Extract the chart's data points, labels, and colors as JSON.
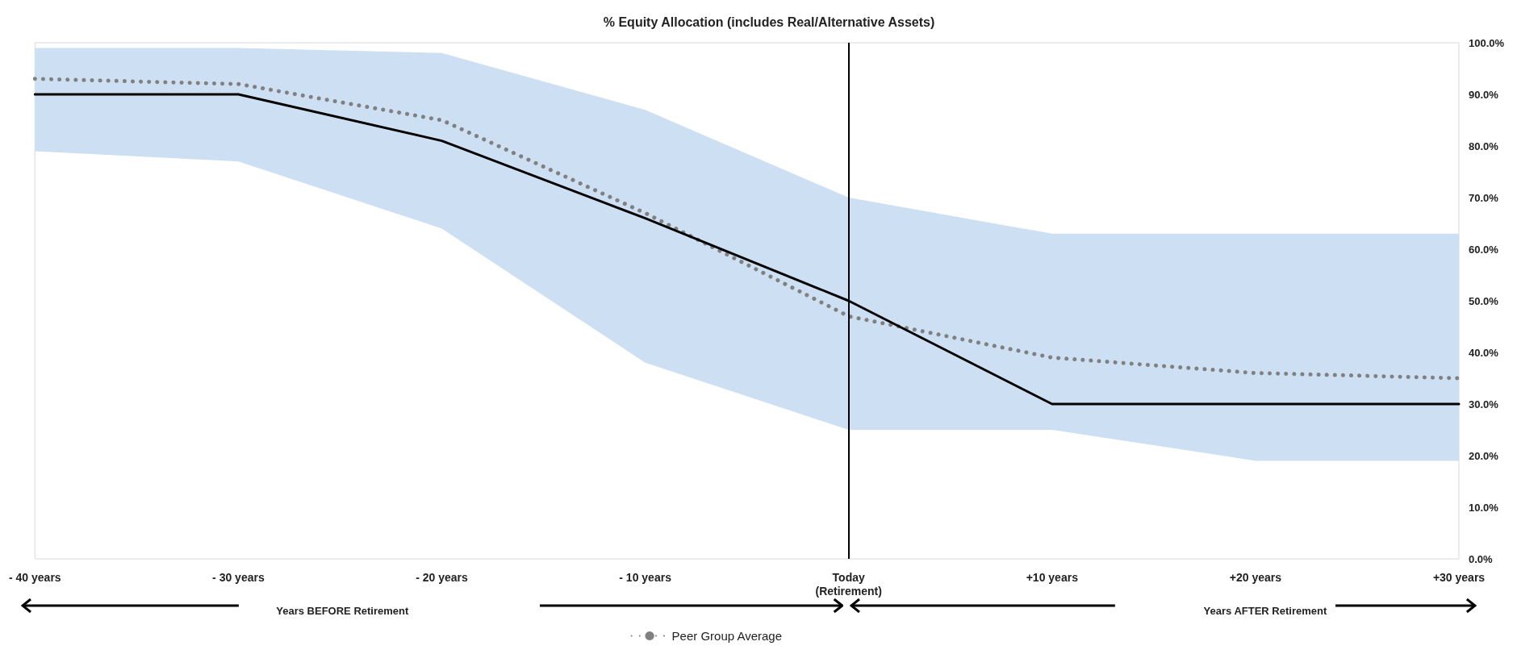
{
  "chart_data": {
    "type": "line",
    "title": "% Equity Allocation (includes Real/Alternative Assets)",
    "categories": [
      "- 40 years",
      "- 30 years",
      "- 20 years",
      "- 10 years",
      "Today\n(Retirement)",
      "+10 years",
      "+20 years",
      "+30 years"
    ],
    "series": [
      {
        "name": "Peer Group Average",
        "color": "#808080",
        "line_style": "dotted",
        "values": [
          93,
          92,
          85,
          67,
          47,
          39,
          36,
          35
        ],
        "lower": [
          79,
          77,
          64,
          38,
          25,
          25,
          19,
          19
        ],
        "upper": [
          99,
          99,
          98,
          87,
          70,
          63,
          63,
          63
        ]
      },
      {
        "color": "#000000",
        "line_style": "solid",
        "values": [
          90,
          90,
          81,
          66,
          50,
          30,
          30,
          30
        ]
      }
    ],
    "ylim": [
      0,
      100
    ],
    "yticks": [
      {
        "value": 0,
        "label": "0.0%"
      },
      {
        "value": 10,
        "label": "10.0%"
      },
      {
        "value": 20,
        "label": "20.0%"
      },
      {
        "value": 30,
        "label": "30.0%"
      },
      {
        "value": 40,
        "label": "40.0%"
      },
      {
        "value": 50,
        "label": "50.0%"
      },
      {
        "value": 60,
        "label": "60.0%"
      },
      {
        "value": 70,
        "label": "70.0%"
      },
      {
        "value": 80,
        "label": "80.0%"
      },
      {
        "value": 90,
        "label": "90.0%"
      },
      {
        "value": 100,
        "label": "100.0%"
      }
    ],
    "ref_lines": [
      {
        "axis": "x",
        "value": "Today\n(Retirement)",
        "label": null,
        "color": "#000000"
      }
    ],
    "annotations": [
      "Years BEFORE Retirement",
      "Years AFTER Retirement"
    ],
    "grid": false,
    "legend": "bottom",
    "marker": "none"
  }
}
